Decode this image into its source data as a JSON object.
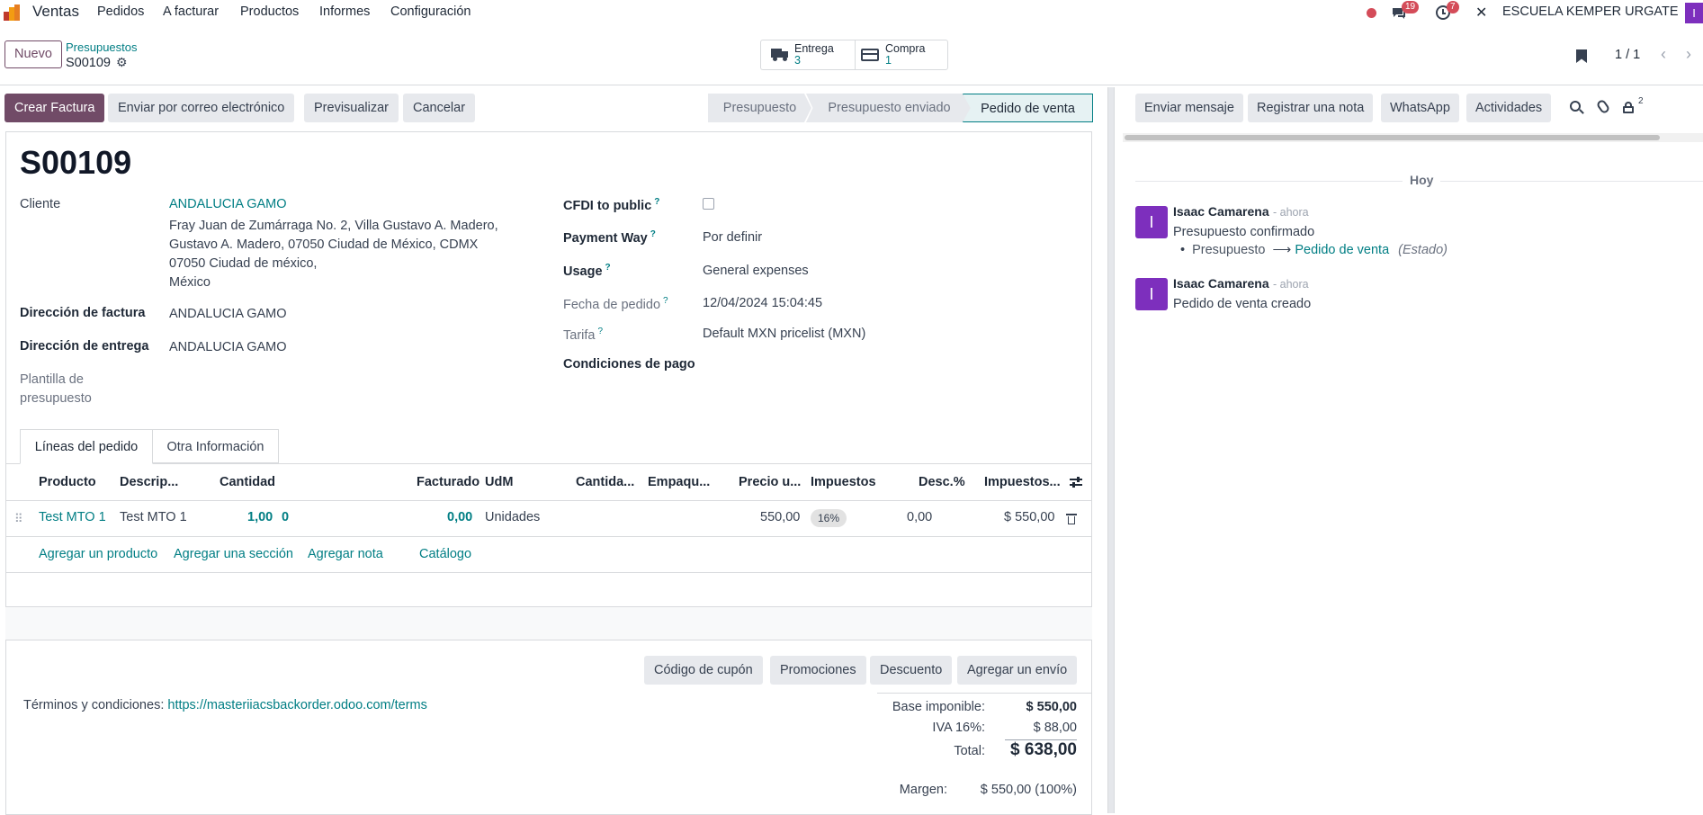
{
  "navbar": {
    "app_name": "Ventas",
    "menu": [
      "Pedidos",
      "A facturar",
      "Productos",
      "Informes",
      "Configuración"
    ],
    "messages_count": "19",
    "activities_count": "7",
    "company": "ESCUELA KEMPER URGATE",
    "user_initial": "I"
  },
  "control": {
    "new_label": "Nuevo",
    "breadcrumb_parent": "Presupuestos",
    "record_name": "S00109",
    "smart_buttons": [
      {
        "label": "Entrega",
        "value": "3"
      },
      {
        "label": "Compra",
        "value": "1"
      }
    ],
    "pager": "1 / 1"
  },
  "actions": {
    "create_invoice": "Crear Factura",
    "send_email": "Enviar por correo electrónico",
    "preview": "Previsualizar",
    "cancel": "Cancelar"
  },
  "statusbar": {
    "stages": [
      "Presupuesto",
      "Presupuesto enviado",
      "Pedido de venta"
    ],
    "active": "Pedido de venta"
  },
  "form": {
    "title": "S00109",
    "customer_label": "Cliente",
    "customer_name": "ANDALUCIA GAMO",
    "address_lines": [
      "Fray Juan de Zumárraga No. 2, Villa Gustavo A. Madero,",
      "Gustavo A. Madero, 07050 Ciudad de México, CDMX",
      "07050 Ciudad de méxico,",
      "México"
    ],
    "invoice_address_label": "Dirección de factura",
    "invoice_address": "ANDALUCIA GAMO",
    "delivery_address_label": "Dirección de entrega",
    "delivery_address": "ANDALUCIA GAMO",
    "template_label_1": "Plantilla de",
    "template_label_2": "presupuesto",
    "cfdi_label": "CFDI to public",
    "payment_way_label": "Payment Way",
    "payment_way": "Por definir",
    "usage_label": "Usage",
    "usage": "General expenses",
    "order_date_label": "Fecha de pedido",
    "order_date": "12/04/2024 15:04:45",
    "pricelist_label": "Tarifa",
    "pricelist": "Default MXN pricelist (MXN)",
    "payment_terms_label": "Condiciones de pago",
    "tabs": [
      "Líneas del pedido",
      "Otra Información"
    ]
  },
  "lines": {
    "headers": [
      "Producto",
      "Descrip...",
      "Cantidad",
      "Facturado",
      "UdM",
      "Cantida...",
      "Empaqu...",
      "Precio u...",
      "Impuestos",
      "Desc.%",
      "Impuestos..."
    ],
    "rows": [
      {
        "product": "Test MTO 1",
        "description": "Test MTO 1",
        "qty": "1,00",
        "qty_extra": "0",
        "invoiced": "0,00",
        "uom": "Unidades",
        "price": "550,00",
        "tax": "16%",
        "discount": "0,00",
        "subtotal": "$ 550,00"
      }
    ],
    "add_product": "Agregar un producto",
    "add_section": "Agregar una sección",
    "add_note": "Agregar nota",
    "catalog": "Catálogo"
  },
  "footer_buttons": [
    "Código de cupón",
    "Promociones",
    "Descuento",
    "Agregar un envío"
  ],
  "terms": {
    "label": "Términos y condiciones:",
    "link": "https://masteriiacsbackorder.odoo.com/terms"
  },
  "totals": {
    "base_label": "Base imponible:",
    "base": "$ 550,00",
    "tax_label": "IVA 16%:",
    "tax": "$ 88,00",
    "total_label": "Total:",
    "total": "$ 638,00",
    "margin_label": "Margen:",
    "margin": "$ 550,00 (100%)"
  },
  "chatter": {
    "send_message": "Enviar mensaje",
    "log_note": "Registrar una nota",
    "whatsapp": "WhatsApp",
    "activities": "Actividades",
    "followers_count": "2",
    "date_separator": "Hoy",
    "messages": [
      {
        "author": "Isaac Camarena",
        "time": "- ahora",
        "body": "Presupuesto confirmado",
        "tracking_old": "Presupuesto",
        "tracking_new": "Pedido de venta",
        "tracking_field": "(Estado)"
      },
      {
        "author": "Isaac Camarena",
        "time": "- ahora",
        "body": "Pedido de venta creado"
      }
    ]
  },
  "colors": {
    "primary": "#714b67",
    "link": "#017e84",
    "badge_red": "#d44c59",
    "avatar": "#7d2fbd"
  }
}
